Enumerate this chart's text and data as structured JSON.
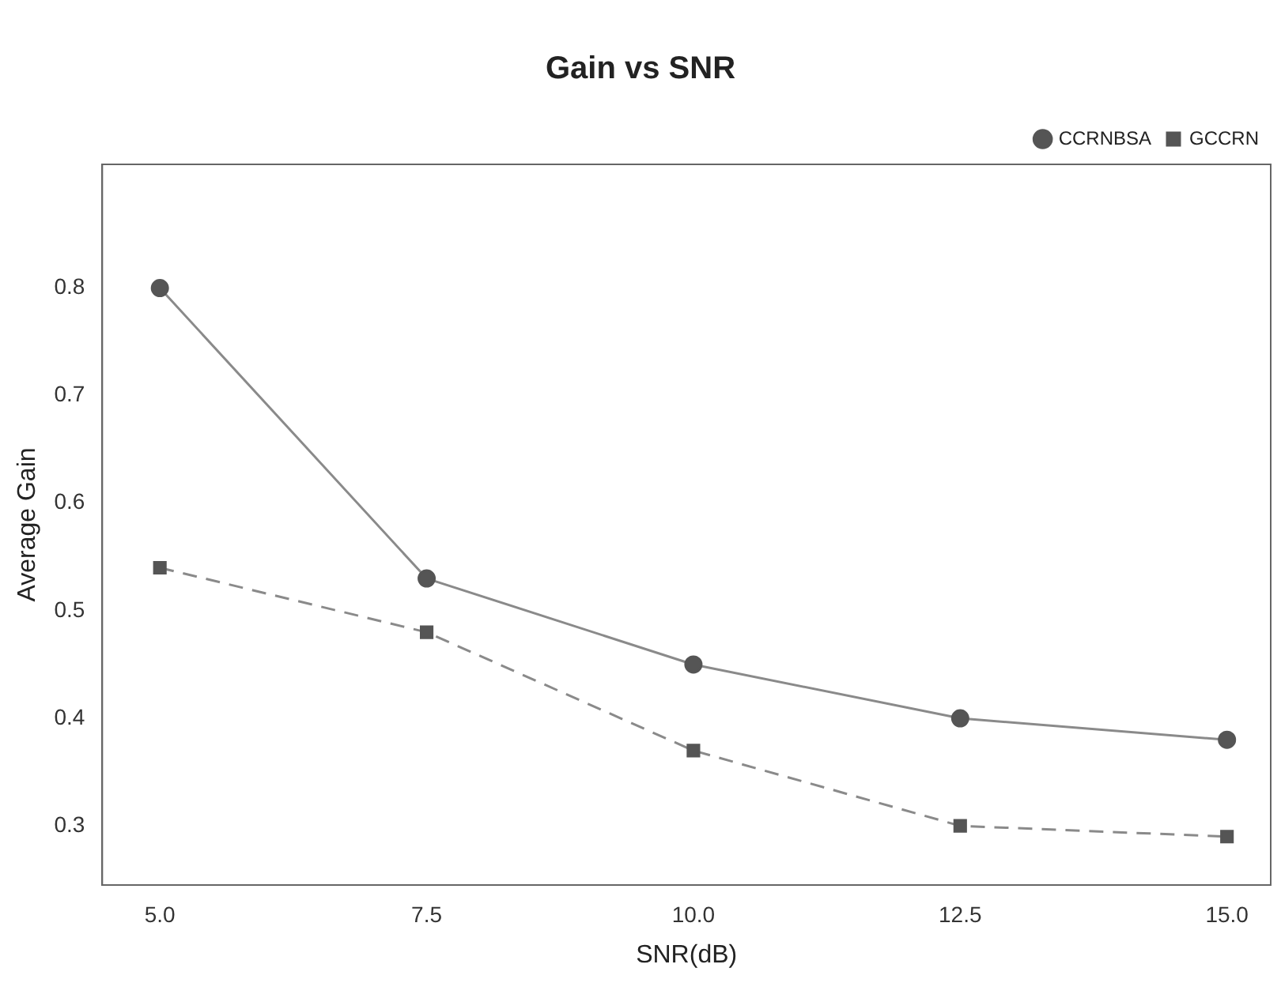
{
  "chart_data": {
    "type": "line",
    "title": "Gain vs SNR",
    "xlabel": "SNR(dB)",
    "ylabel": "Average Gain",
    "x": [
      5.0,
      7.5,
      10.0,
      12.5,
      15.0
    ],
    "series": [
      {
        "name": "CCRNBSA",
        "color": "#555555",
        "values": [
          0.8,
          0.53,
          0.45,
          0.4,
          0.38
        ],
        "marker": "circle",
        "line_style": "solid"
      },
      {
        "name": "GCCRN",
        "color": "#555555",
        "values": [
          0.54,
          0.48,
          0.37,
          0.3,
          0.29
        ],
        "marker": "square",
        "line_style": "dashed"
      }
    ],
    "xlim": [
      4.46,
      15.41
    ],
    "xticks": [
      {
        "value": 5,
        "label": "5.0"
      },
      {
        "value": 7.5,
        "label": "7.5"
      },
      {
        "value": 10,
        "label": "10.0"
      },
      {
        "value": 12.5,
        "label": "12.5"
      },
      {
        "value": 15,
        "label": "15.0"
      }
    ],
    "ylim": [
      0.245,
      0.915
    ],
    "yticks": [
      0.3,
      0.4,
      0.5,
      0.6,
      0.7,
      0.8
    ],
    "grid": false,
    "legend": "top right"
  }
}
